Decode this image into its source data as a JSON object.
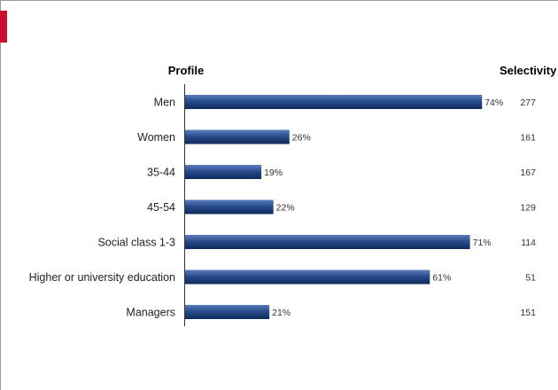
{
  "colors": {
    "accent": "#c8102e",
    "bar_dark": "#0d2a5c",
    "bar_light": "#5a7fbb"
  },
  "chart_data": {
    "type": "bar",
    "orientation": "horizontal",
    "title": "",
    "category_header": "Profile",
    "selectivity_header": "Selectivity",
    "categories": [
      "Men",
      "Women",
      "35-44",
      "45-54",
      "Social class 1-3",
      "Higher or university education",
      "Managers"
    ],
    "values": [
      74,
      26,
      19,
      22,
      71,
      61,
      21
    ],
    "value_labels": [
      "74%",
      "26%",
      "19%",
      "22%",
      "71%",
      "61%",
      "21%"
    ],
    "selectivity": [
      277,
      161,
      167,
      129,
      114,
      51,
      151
    ],
    "xlim": [
      0,
      100
    ],
    "unit": "%",
    "grid": false,
    "legend": "none"
  }
}
